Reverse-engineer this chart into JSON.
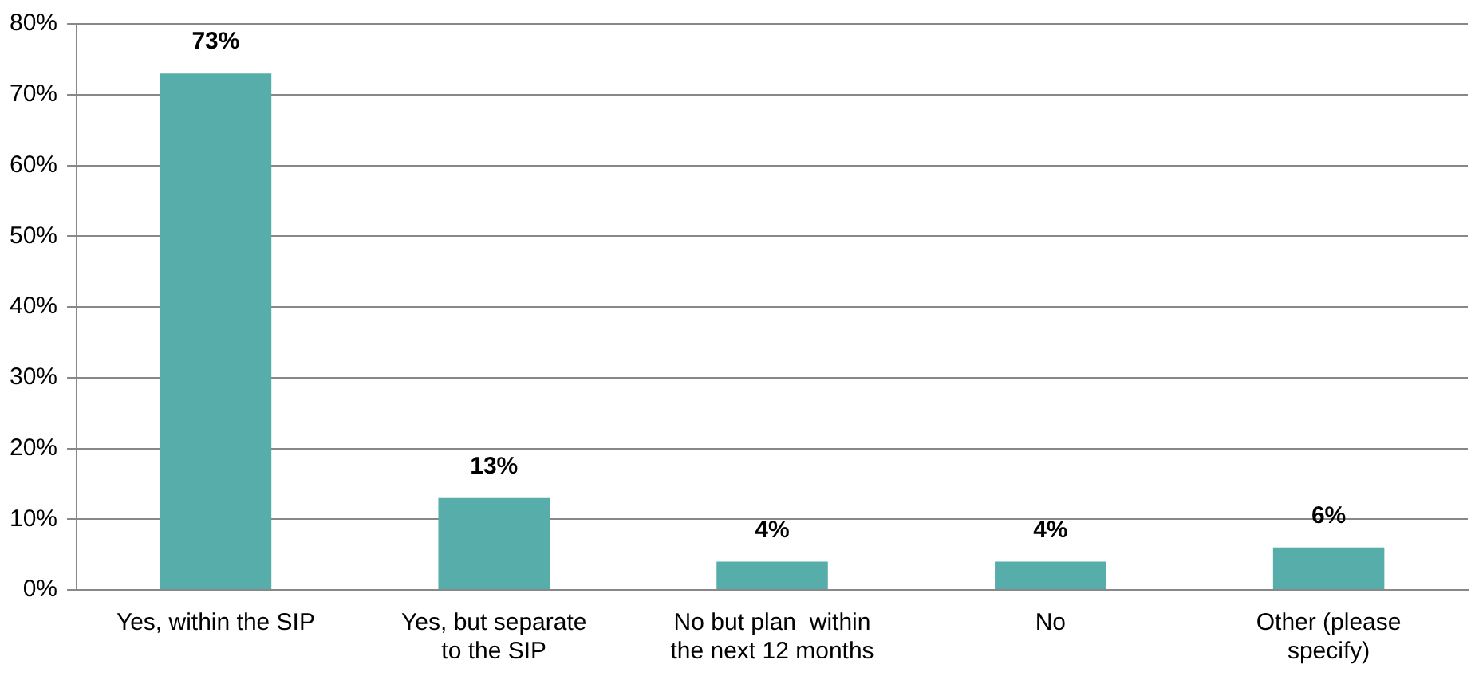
{
  "chart_data": {
    "type": "bar",
    "categories": [
      "Yes, within the SIP",
      "Yes, but separate to the SIP",
      "No but plan  within the next 12 months",
      "No",
      "Other (please specify)"
    ],
    "values": [
      73,
      13,
      4,
      4,
      6
    ],
    "value_labels": [
      "73%",
      "13%",
      "4%",
      "4%",
      "6%"
    ],
    "color": "#56ada9",
    "ylim": [
      0,
      80
    ],
    "yticks": [
      {
        "value": 0,
        "label": "0%"
      },
      {
        "value": 10,
        "label": "10%"
      },
      {
        "value": 20,
        "label": "20%"
      },
      {
        "value": 30,
        "label": "30%"
      },
      {
        "value": 40,
        "label": "40%"
      },
      {
        "value": 50,
        "label": "50%"
      },
      {
        "value": 60,
        "label": "60%"
      },
      {
        "value": 70,
        "label": "70%"
      },
      {
        "value": 80,
        "label": "80%"
      }
    ],
    "grid": "y",
    "legend": false
  }
}
